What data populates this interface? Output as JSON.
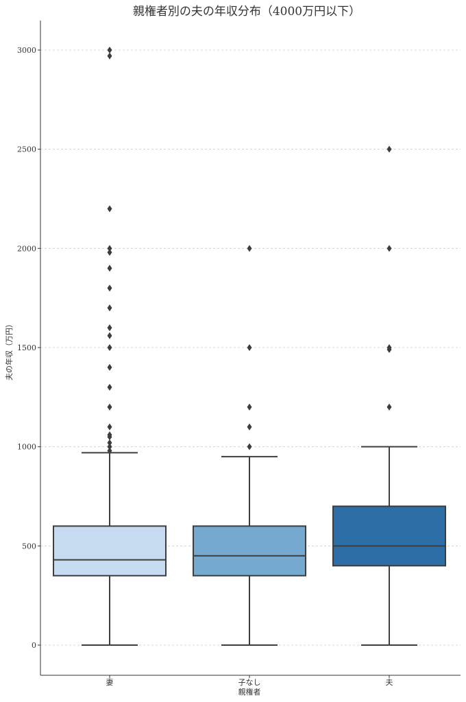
{
  "chart_data": {
    "type": "box",
    "title": "親権者別の夫の年収分布（4000万円以下）",
    "xlabel": "親権者",
    "ylabel": "夫の年収（万円）",
    "categories": [
      "妻",
      "子なし",
      "夫"
    ],
    "ylim": [
      -150,
      3150
    ],
    "yticks": [
      0,
      500,
      1000,
      1500,
      2000,
      2500,
      3000
    ],
    "grid": "horizontal dashed",
    "boxes": [
      {
        "category": "妻",
        "whisker_low": 0,
        "q1": 350,
        "median": 430,
        "q3": 600,
        "whisker_high": 970,
        "color": "#c6dbef",
        "outliers": [
          980,
          1000,
          1020,
          1050,
          1060,
          1100,
          1200,
          1300,
          1400,
          1500,
          1560,
          1600,
          1700,
          1800,
          1900,
          1980,
          2000,
          2200,
          2970,
          3000
        ]
      },
      {
        "category": "子なし",
        "whisker_low": 0,
        "q1": 350,
        "median": 450,
        "q3": 600,
        "whisker_high": 950,
        "color": "#75a9cf",
        "outliers": [
          1000,
          1100,
          1200,
          1500,
          2000
        ]
      },
      {
        "category": "夫",
        "whisker_low": 0,
        "q1": 400,
        "median": 500,
        "q3": 700,
        "whisker_high": 1000,
        "color": "#2e6ea6",
        "outliers": [
          1200,
          1490,
          1500,
          2000,
          2500
        ]
      }
    ]
  }
}
